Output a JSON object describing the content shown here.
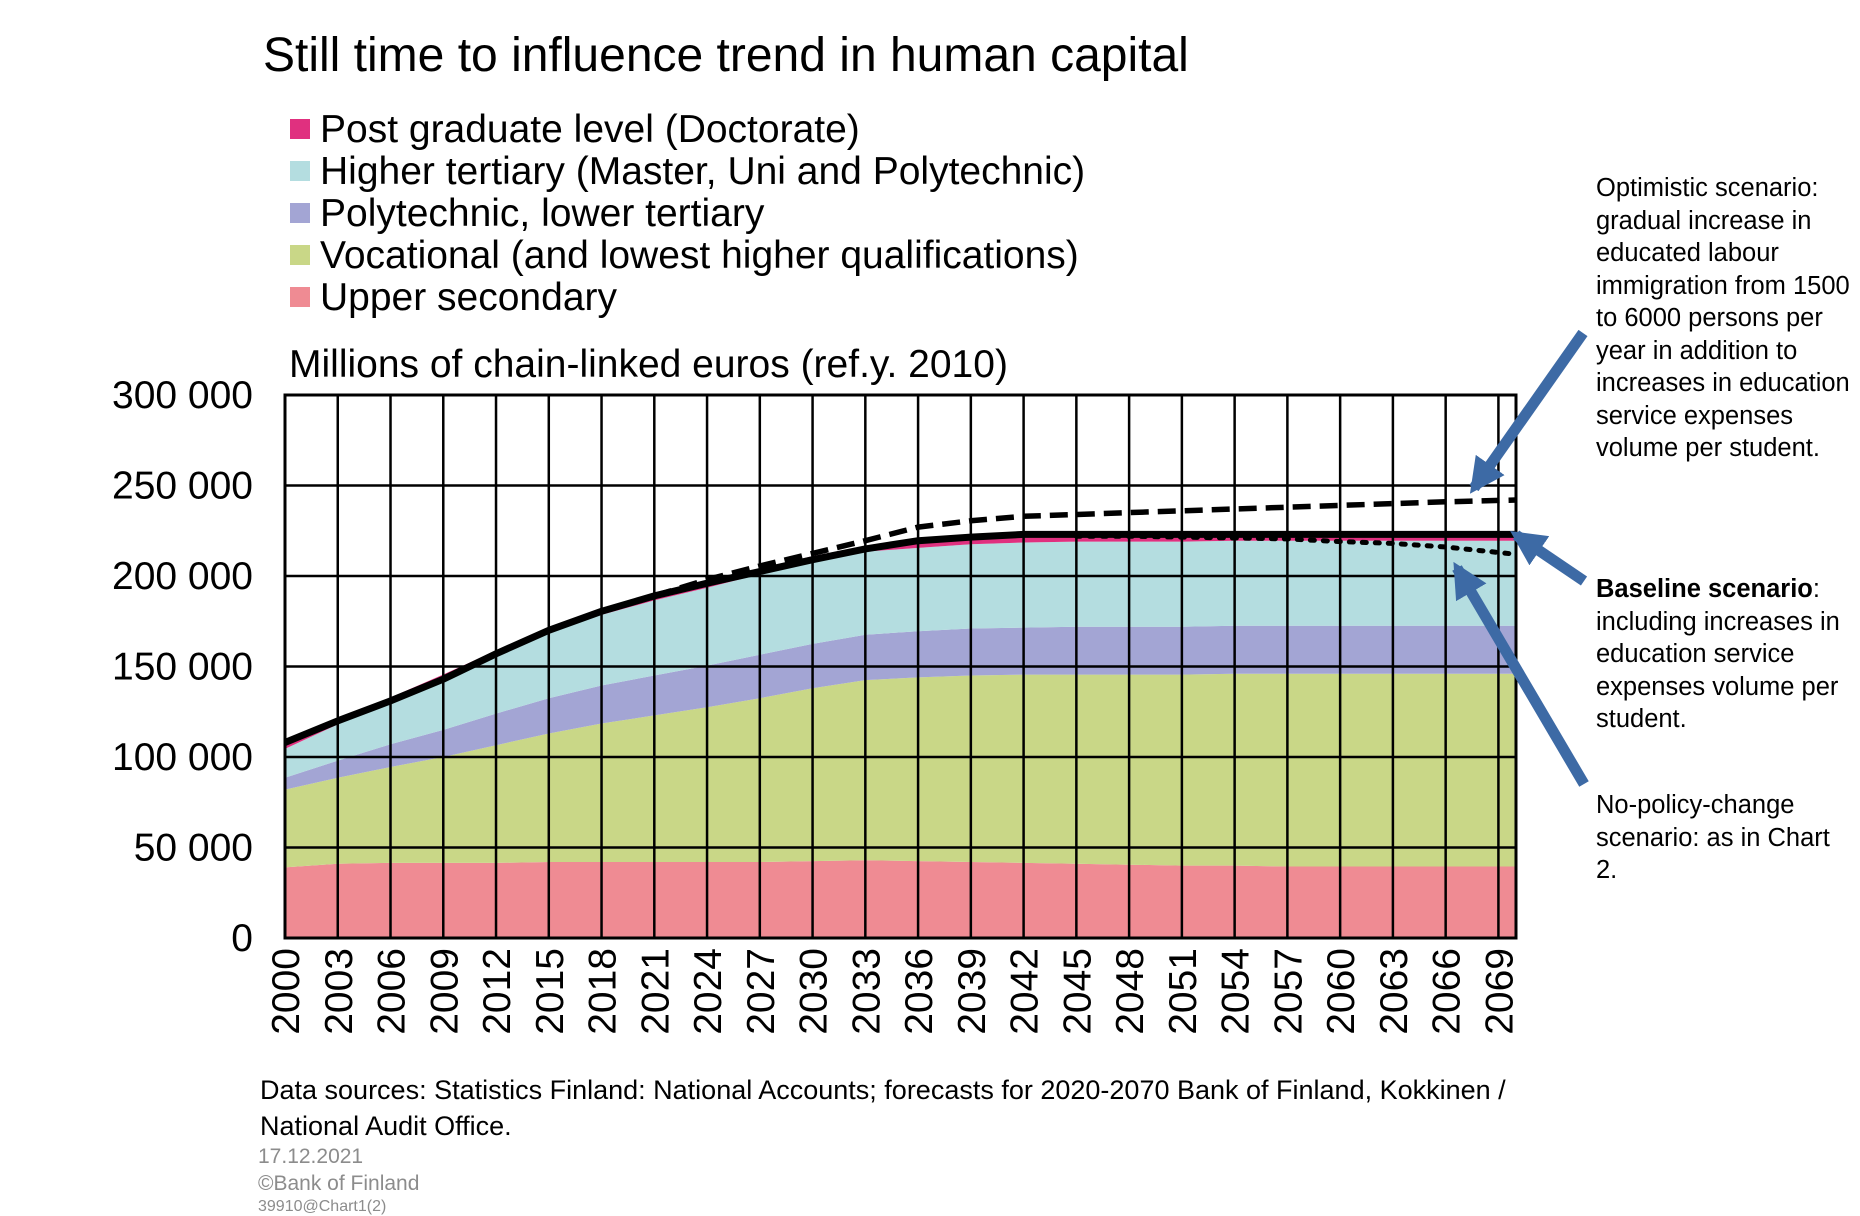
{
  "title": "Still time to influence trend in human capital",
  "ylabel": "Millions of chain-linked euros (ref.y. 2010)",
  "legend": [
    {
      "label": "Post graduate level (Doctorate)",
      "color": "#e0307f"
    },
    {
      "label": "Higher tertiary (Master, Uni and Polytechnic)",
      "color": "#b4dde0"
    },
    {
      "label": "Polytechnic, lower tertiary",
      "color": "#a3a5d4"
    },
    {
      "label": "Vocational (and lowest higher qualifications)",
      "color": "#c9d787"
    },
    {
      "label": "Upper secondary",
      "color": "#ef8b93"
    }
  ],
  "notes": {
    "optimistic": "Optimistic scenario: gradual increase in educated labour immigration from 1500 to 6000 persons per year in addition to increases in education service expenses volume per student.",
    "baseline_bold": "Baseline scenario",
    "baseline_rest": ": including increases in education service expenses volume per student.",
    "nopolicy": "No-policy-change scenario: as in Chart 2."
  },
  "source": "Data sources: Statistics Finland: National Accounts; forecasts for 2020-2070 Bank of Finland, Kokkinen / National Audit Office.",
  "date": "17.12.2021",
  "copyright": "©Bank of Finland",
  "code": "39910@Chart1(2)",
  "chart_data": {
    "type": "area",
    "ylim": [
      0,
      300000
    ],
    "xlim": [
      2000,
      2070
    ],
    "yticks": [
      0,
      50000,
      100000,
      150000,
      200000,
      250000,
      300000
    ],
    "ytick_labels": [
      "0",
      "50 000",
      "100 000",
      "150 000",
      "200 000",
      "250 000",
      "300 000"
    ],
    "xtick_labels": [
      "2000",
      "2003",
      "2006",
      "2009",
      "2012",
      "2015",
      "2018",
      "2021",
      "2024",
      "2027",
      "2030",
      "2033",
      "2036",
      "2039",
      "2042",
      "2045",
      "2048",
      "2051",
      "2054",
      "2057",
      "2060",
      "2063",
      "2066",
      "2069"
    ],
    "grid": true,
    "x": [
      2000,
      2003,
      2006,
      2009,
      2012,
      2015,
      2018,
      2021,
      2024,
      2027,
      2030,
      2033,
      2036,
      2039,
      2042,
      2045,
      2048,
      2051,
      2054,
      2057,
      2060,
      2063,
      2066,
      2070
    ],
    "series": [
      {
        "name": "Upper secondary",
        "color": "#ef8b93",
        "values": [
          39000,
          41000,
          41500,
          41500,
          41500,
          42000,
          42000,
          42000,
          42000,
          42000,
          42500,
          43000,
          42500,
          42000,
          41500,
          41000,
          40500,
          40000,
          40000,
          39500,
          39500,
          39500,
          39500,
          39500
        ]
      },
      {
        "name": "Vocational (and lowest higher qualifications)",
        "color": "#c9d787",
        "values": [
          43000,
          47500,
          53000,
          58500,
          65000,
          71000,
          76500,
          81000,
          85500,
          90500,
          95500,
          99500,
          101500,
          103000,
          104000,
          104500,
          105000,
          105500,
          106000,
          106500,
          106500,
          106500,
          106500,
          106500
        ]
      },
      {
        "name": "Polytechnic, lower tertiary",
        "color": "#a3a5d4",
        "values": [
          6500,
          9500,
          12500,
          15000,
          17500,
          19500,
          21000,
          22000,
          23000,
          24000,
          24500,
          25000,
          25500,
          26000,
          26000,
          26500,
          26500,
          26500,
          26500,
          26500,
          26500,
          26500,
          26500,
          26500
        ]
      },
      {
        "name": "Higher tertiary (Master, Uni and Polytechnic)",
        "color": "#b4dde0",
        "values": [
          16000,
          20000,
          23500,
          28000,
          32000,
          36000,
          39000,
          41500,
          43000,
          44500,
          45500,
          46000,
          46000,
          46500,
          47000,
          47000,
          47000,
          47000,
          47000,
          47000,
          47000,
          47000,
          47000,
          47000
        ]
      },
      {
        "name": "Post graduate level (Doctorate)",
        "color": "#e0307f",
        "values": [
          2000,
          2200,
          2400,
          2600,
          2800,
          3000,
          3000,
          3000,
          3000,
          3000,
          3000,
          3000,
          3000,
          3000,
          3000,
          3000,
          3000,
          3000,
          3000,
          3000,
          3000,
          3000,
          3000,
          3000
        ]
      }
    ],
    "lines": [
      {
        "name": "Baseline scenario",
        "style": "solid",
        "values": [
          108000,
          120000,
          131000,
          143000,
          157000,
          170000,
          180500,
          189000,
          196000,
          202500,
          209000,
          215000,
          219500,
          221500,
          223000,
          223000,
          223000,
          223000,
          223000,
          223000,
          223000,
          223000,
          223000,
          223000
        ]
      },
      {
        "name": "Optimistic scenario",
        "style": "dashed",
        "x": [
          2021,
          2024,
          2027,
          2030,
          2033,
          2036,
          2039,
          2042,
          2045,
          2048,
          2051,
          2054,
          2057,
          2060,
          2063,
          2066,
          2070
        ],
        "values": [
          189000,
          198000,
          205500,
          212500,
          219500,
          227000,
          230500,
          233000,
          234000,
          235000,
          236000,
          237000,
          238000,
          239000,
          240000,
          241000,
          242000
        ]
      },
      {
        "name": "No-policy-change scenario",
        "style": "dotted",
        "x": [
          2045,
          2048,
          2051,
          2054,
          2057,
          2060,
          2063,
          2066,
          2070
        ],
        "values": [
          222000,
          222000,
          221500,
          221000,
          220500,
          219000,
          218000,
          216000,
          212000
        ]
      }
    ]
  }
}
